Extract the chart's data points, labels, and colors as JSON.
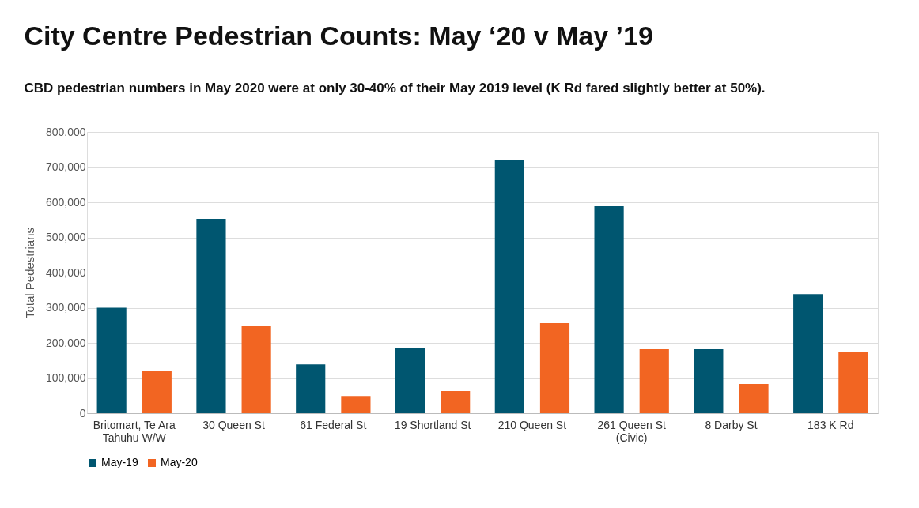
{
  "chart_data": {
    "type": "bar",
    "title": "City Centre Pedestrian Counts: May ‘20 v May ’19",
    "subtitle": "CBD pedestrian numbers in May 2020 were at only 30-40% of their May 2019 level (K Rd fared slightly better at 50%).",
    "ylabel": "Total Pedestrians",
    "categories": [
      "Britomart, Te Ara\nTahuhu W/W",
      "30 Queen St",
      "61 Federal St",
      "19 Shortland St",
      "210 Queen St",
      "261 Queen St\n(Civic)",
      "8 Darby St",
      "183 K Rd"
    ],
    "series": [
      {
        "name": "May-19",
        "color": "#005670",
        "values": [
          300000,
          553000,
          139000,
          184000,
          719000,
          589000,
          182000,
          339000
        ]
      },
      {
        "name": "May-20",
        "color": "#f26522",
        "values": [
          119000,
          247000,
          49000,
          63000,
          256000,
          182000,
          83000,
          173000
        ]
      }
    ],
    "ylim": [
      0,
      800000
    ],
    "yticks": [
      {
        "value": 0,
        "label": "0"
      },
      {
        "value": 100000,
        "label": "100,000"
      },
      {
        "value": 200000,
        "label": "200,000"
      },
      {
        "value": 300000,
        "label": "300,000"
      },
      {
        "value": 400000,
        "label": "400,000"
      },
      {
        "value": 500000,
        "label": "500,000"
      },
      {
        "value": 600000,
        "label": "600,000"
      },
      {
        "value": 700000,
        "label": "700,000"
      },
      {
        "value": 800000,
        "label": "800,000"
      }
    ],
    "grid": "y",
    "legend": "bottom"
  }
}
